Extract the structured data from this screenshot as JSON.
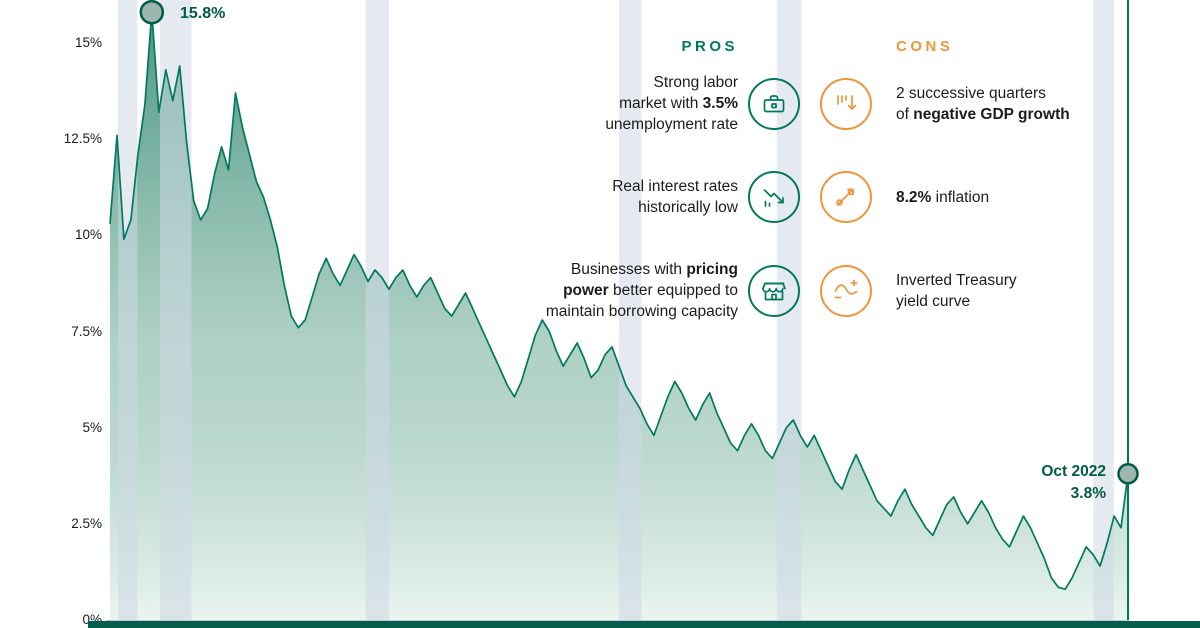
{
  "colors": {
    "teal": "#00795c",
    "teal_dark": "#005c46",
    "orange": "#f0953a",
    "band": "#cdd9e4",
    "axis": "#a9b2ba",
    "line": "#00795c",
    "marker_fill": "#9fb6ae",
    "marker_stroke": "#005c46",
    "fill_top": "#2c856d",
    "fill_mid": "#7bb2a0",
    "fill_bottom": "#e9f4ef",
    "footer": "#045e4b"
  },
  "chart": {
    "peak_label": "15.8%",
    "end_date": "Oct 2022",
    "end_value": "3.8%"
  },
  "chart_data": {
    "type": "area",
    "title": "",
    "xlabel": "",
    "ylabel": "",
    "x_description": "time series, x-axis labels cropped out of view",
    "ylim": [
      0,
      16.2
    ],
    "grid": false,
    "y_ticks": [
      {
        "label": "15%",
        "value": 15
      },
      {
        "label": "12.5%",
        "value": 12.5
      },
      {
        "label": "10%",
        "value": 10
      },
      {
        "label": "7.5%",
        "value": 7.5
      },
      {
        "label": "5%",
        "value": 5
      },
      {
        "label": "2.5%",
        "value": 2.5
      },
      {
        "label": "0%",
        "value": 0
      }
    ],
    "values": [
      10.3,
      12.6,
      9.9,
      10.4,
      12.1,
      13.4,
      15.8,
      13.2,
      14.3,
      13.5,
      14.4,
      12.4,
      10.9,
      10.4,
      10.7,
      11.6,
      12.3,
      11.7,
      13.7,
      12.8,
      12.1,
      11.4,
      11.0,
      10.4,
      9.7,
      8.7,
      7.9,
      7.6,
      7.8,
      8.4,
      9.0,
      9.4,
      9.0,
      8.7,
      9.1,
      9.5,
      9.2,
      8.8,
      9.1,
      8.9,
      8.6,
      8.9,
      9.1,
      8.7,
      8.4,
      8.7,
      8.9,
      8.5,
      8.1,
      7.9,
      8.2,
      8.5,
      8.1,
      7.7,
      7.3,
      6.9,
      6.5,
      6.1,
      5.8,
      6.2,
      6.8,
      7.4,
      7.8,
      7.5,
      7.0,
      6.6,
      6.9,
      7.2,
      6.8,
      6.3,
      6.5,
      6.9,
      7.1,
      6.6,
      6.1,
      5.8,
      5.5,
      5.1,
      4.8,
      5.3,
      5.8,
      6.2,
      5.9,
      5.5,
      5.2,
      5.6,
      5.9,
      5.4,
      5.0,
      4.6,
      4.4,
      4.8,
      5.1,
      4.8,
      4.4,
      4.2,
      4.6,
      5.0,
      5.2,
      4.8,
      4.5,
      4.8,
      4.4,
      4.0,
      3.6,
      3.4,
      3.9,
      4.3,
      3.9,
      3.5,
      3.1,
      2.9,
      2.7,
      3.1,
      3.4,
      3.0,
      2.7,
      2.4,
      2.2,
      2.6,
      3.0,
      3.2,
      2.8,
      2.5,
      2.8,
      3.1,
      2.8,
      2.4,
      2.1,
      1.9,
      2.3,
      2.7,
      2.4,
      2.0,
      1.6,
      1.1,
      0.85,
      0.8,
      1.1,
      1.5,
      1.9,
      1.7,
      1.4,
      2.0,
      2.7,
      2.4,
      3.8
    ],
    "annotations": [
      {
        "text": "15.8%",
        "at": "peak"
      },
      {
        "text": "Oct 2022 3.8%",
        "at": "end"
      }
    ],
    "recession_bands_frac": [
      [
        0.008,
        0.027
      ],
      [
        0.049,
        0.08
      ],
      [
        0.251,
        0.274
      ],
      [
        0.5,
        0.522
      ],
      [
        0.655,
        0.679
      ],
      [
        0.966,
        0.986
      ]
    ],
    "legend": []
  },
  "panel": {
    "pros_header": "PROS",
    "cons_header": "CONS",
    "pros": [
      {
        "icon": "briefcase-icon",
        "lines": [
          [
            {
              "t": "Strong labor"
            }
          ],
          [
            {
              "t": "market with "
            },
            {
              "t": "3.5%",
              "b": 1
            }
          ],
          [
            {
              "t": "unemployment rate"
            }
          ]
        ]
      },
      {
        "icon": "rates-down-icon",
        "lines": [
          [
            {
              "t": "Real interest rates"
            }
          ],
          [
            {
              "t": "historically low"
            }
          ]
        ]
      },
      {
        "icon": "storefront-icon",
        "lines": [
          [
            {
              "t": "Businesses with "
            },
            {
              "t": "pricing",
              "b": 1
            }
          ],
          [
            {
              "t": "power",
              "b": 1
            },
            {
              "t": " better equipped to"
            }
          ],
          [
            {
              "t": "maintain borrowing capacity"
            }
          ]
        ]
      }
    ],
    "cons": [
      {
        "icon": "gdp-down-icon",
        "lines": [
          [
            {
              "t": "2 successive quarters"
            }
          ],
          [
            {
              "t": "of "
            },
            {
              "t": "negative GDP growth",
              "b": 1
            }
          ]
        ]
      },
      {
        "icon": "inflation-up-icon",
        "lines": [
          [
            {
              "t": "8.2%",
              "b": 1
            },
            {
              "t": " inflation"
            }
          ]
        ]
      },
      {
        "icon": "inverted-curve-icon",
        "lines": [
          [
            {
              "t": "Inverted Treasury"
            }
          ],
          [
            {
              "t": "yield curve"
            }
          ]
        ]
      }
    ]
  }
}
